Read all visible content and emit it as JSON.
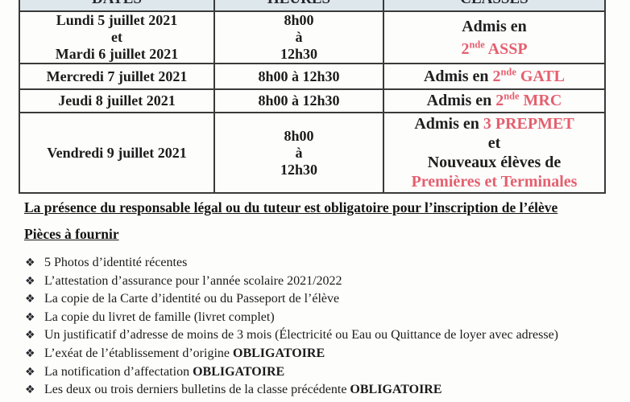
{
  "palette": {
    "accent_pink": "#e4606f",
    "header_bg": "#dee8ec",
    "table_border": "#3a3a3a"
  },
  "table": {
    "headers": [
      {
        "label": "DATES"
      },
      {
        "label": "HEURES"
      },
      {
        "label": "CLASSES"
      }
    ],
    "rows": [
      {
        "date_lines": [
          "Lundi 5 juillet 2021",
          "et",
          "Mardi 6 juillet 2021"
        ],
        "hour_lines": [
          "8h00",
          "à",
          "12h30"
        ],
        "class_lines": [
          [
            {
              "text": "Admis en"
            }
          ],
          [
            {
              "text": "2",
              "pink": true
            },
            {
              "text": "nde",
              "pink": true,
              "sup": true
            },
            {
              "text": " ASSP",
              "pink": true
            }
          ]
        ]
      },
      {
        "date_lines": [
          "Mercredi 7 juillet 2021"
        ],
        "hour_lines": [
          "8h00 à 12h30"
        ],
        "class_lines": [
          [
            {
              "text": "Admis en "
            },
            {
              "text": "2",
              "pink": true
            },
            {
              "text": "nde",
              "pink": true,
              "sup": true
            },
            {
              "text": " GATL",
              "pink": true
            }
          ]
        ]
      },
      {
        "date_lines": [
          "Jeudi 8 juillet 2021"
        ],
        "hour_lines": [
          "8h00 à 12h30"
        ],
        "class_lines": [
          [
            {
              "text": "Admis en "
            },
            {
              "text": "2",
              "pink": true
            },
            {
              "text": "nde",
              "pink": true,
              "sup": true
            },
            {
              "text": " MRC",
              "pink": true
            }
          ]
        ]
      },
      {
        "date_lines": [
          "Vendredi 9 juillet 2021"
        ],
        "hour_lines": [
          "8h00",
          "à",
          "12h30"
        ],
        "class_lines": [
          [
            {
              "text": "Admis en "
            },
            {
              "text": "3 PREPMET",
              "pink": true
            }
          ],
          [
            {
              "text": "et"
            }
          ],
          [
            {
              "text": "Nouveaux élèves de"
            }
          ],
          [
            {
              "text": "Premières et Terminales",
              "pink": true
            }
          ]
        ]
      }
    ]
  },
  "notes": {
    "presence_statement": "La présence du responsable légal ou du tuteur est obligatoire pour l’inscription de l’élève",
    "pieces_title": "Pièces à fournir"
  },
  "checklist": {
    "bullet": "❖",
    "items": [
      {
        "text": "5 Photos d’identité récentes"
      },
      {
        "text": "L’attestation d’assurance pour l’année scolaire 2021/2022"
      },
      {
        "text": "La copie de la Carte d’identité ou du Passeport de l’élève"
      },
      {
        "text": "La copie du livret de famille (livret complet)"
      },
      {
        "text": "Un justificatif d’adresse de moins de 3 mois (Électricité ou Eau ou Quittance de loyer avec adresse)"
      },
      {
        "text": "L’exéat de l’établissement d’origine ",
        "bold": "OBLIGATOIRE"
      },
      {
        "text": "La notification d’affectation ",
        "bold": "OBLIGATOIRE"
      },
      {
        "text": "Les deux ou trois derniers bulletins de la classe précédente ",
        "bold": "OBLIGATOIRE"
      }
    ]
  }
}
